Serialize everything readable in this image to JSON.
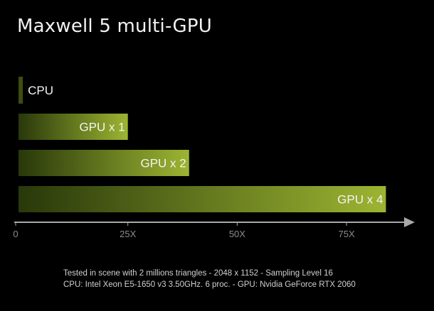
{
  "chart_data": {
    "type": "bar",
    "orientation": "horizontal",
    "title": "Maxwell 5 multi-GPU",
    "categories": [
      "CPU",
      "GPU x 1",
      "GPU x 2",
      "GPU x 4"
    ],
    "values": [
      1,
      25,
      39,
      84
    ],
    "xticks": [
      "0",
      "25X",
      "50X",
      "75X"
    ],
    "xlim": [
      0,
      88
    ],
    "grid": false,
    "legend": "none",
    "colors": {
      "bar_dark": "#29380a",
      "bar_light": "#9cb532",
      "bar_cpu": "#3c4c12",
      "axis": "#a9a9a9",
      "tick_label": "#8c8c8c",
      "bar_label": "#f4f4f4"
    }
  },
  "footnote": {
    "line1": "Tested in scene with 2 millions triangles - 2048 x 1152 - Sampling Level 16",
    "line2": "CPU: Intel Xeon E5-1650 v3 3.50GHz. 6 proc.  -  GPU: Nvidia GeForce RTX 2060"
  }
}
